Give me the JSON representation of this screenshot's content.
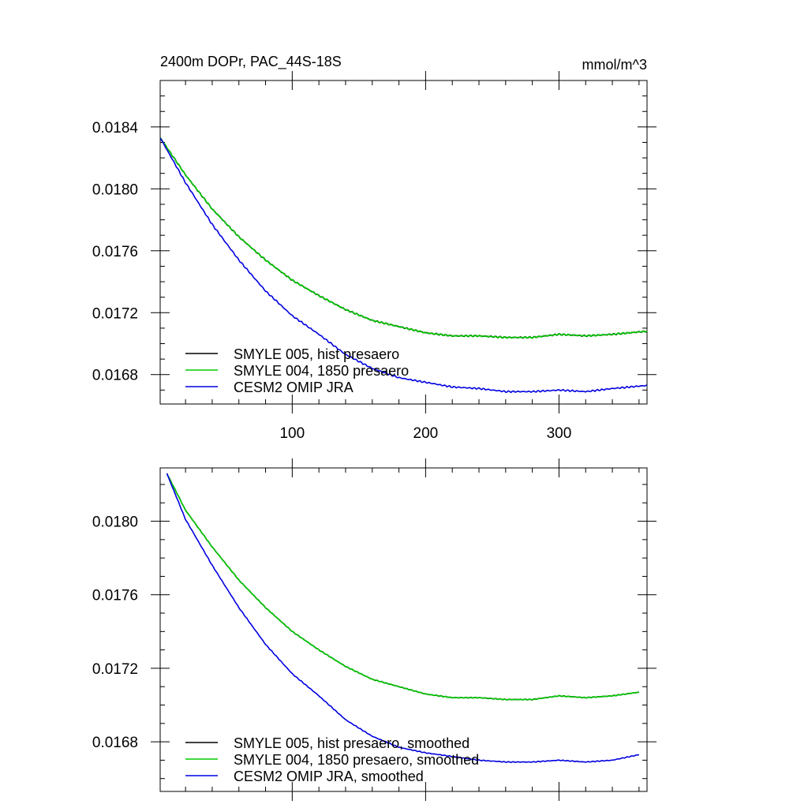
{
  "chart_data": [
    {
      "type": "line",
      "title": "2400m DOPr, PAC_44S-18S",
      "units": "mmol/m^3",
      "xlim": [
        1,
        366
      ],
      "ylim": [
        0.01661,
        0.0187
      ],
      "x_ticks": [
        100,
        200,
        300
      ],
      "x_tick_labels": [
        "100",
        "200",
        "300"
      ],
      "y_ticks": [
        0.0168,
        0.0172,
        0.0176,
        0.018,
        0.0184
      ],
      "y_tick_labels": [
        "0.0168",
        "0.0172",
        "0.0176",
        "0.0180",
        "0.0184"
      ],
      "legend": "bottom-left",
      "series": [
        {
          "name": "SMYLE 005, hist presaero",
          "color": "#000000",
          "x": [
            1,
            20,
            40,
            60,
            80,
            100,
            120,
            140,
            160,
            180,
            200,
            220,
            240,
            260,
            280,
            300,
            320,
            340,
            366
          ],
          "values": [
            0.01833,
            0.01809,
            0.01787,
            0.01769,
            0.01754,
            0.01741,
            0.01731,
            0.01722,
            0.01715,
            0.01711,
            0.01707,
            0.01705,
            0.01705,
            0.01704,
            0.01704,
            0.01706,
            0.01705,
            0.01706,
            0.01708
          ]
        },
        {
          "name": "SMYLE 004, 1850 presaero",
          "color": "#00cc00",
          "x": [
            1,
            20,
            40,
            60,
            80,
            100,
            120,
            140,
            160,
            180,
            200,
            220,
            240,
            260,
            280,
            300,
            320,
            340,
            366
          ],
          "values": [
            0.01833,
            0.01809,
            0.01787,
            0.01769,
            0.01754,
            0.01741,
            0.01731,
            0.01722,
            0.01715,
            0.01711,
            0.01707,
            0.01705,
            0.01705,
            0.01704,
            0.01704,
            0.01706,
            0.01705,
            0.01706,
            0.01708
          ]
        },
        {
          "name": "CESM2 OMIP JRA",
          "color": "#0000e0",
          "x": [
            1,
            20,
            40,
            60,
            80,
            100,
            120,
            140,
            160,
            180,
            200,
            220,
            240,
            260,
            280,
            300,
            320,
            340,
            366
          ],
          "values": [
            0.01833,
            0.01804,
            0.01777,
            0.01754,
            0.01734,
            0.01718,
            0.01706,
            0.01693,
            0.01684,
            0.01678,
            0.01675,
            0.01672,
            0.01671,
            0.01669,
            0.01669,
            0.0167,
            0.01669,
            0.01671,
            0.01673
          ]
        }
      ]
    },
    {
      "type": "line",
      "title": "",
      "xlim": [
        1,
        366
      ],
      "ylim": [
        0.01653,
        0.01829
      ],
      "x_ticks": [
        100,
        200,
        300
      ],
      "x_tick_labels": [],
      "y_ticks": [
        0.0168,
        0.0172,
        0.0176,
        0.018
      ],
      "y_tick_labels": [
        "0.0168",
        "0.0172",
        "0.0176",
        "0.0180"
      ],
      "legend": "bottom-left",
      "series": [
        {
          "name": "SMYLE 005, hist presaero, smoothed",
          "color": "#000000",
          "x": [
            6,
            20,
            40,
            60,
            80,
            100,
            120,
            140,
            160,
            180,
            200,
            220,
            240,
            260,
            280,
            300,
            320,
            340,
            360
          ],
          "values": [
            0.01826,
            0.01806,
            0.01786,
            0.01768,
            0.01753,
            0.0174,
            0.0173,
            0.01721,
            0.01714,
            0.0171,
            0.01706,
            0.01704,
            0.01704,
            0.01703,
            0.01703,
            0.01705,
            0.01704,
            0.01705,
            0.01707
          ]
        },
        {
          "name": "SMYLE 004, 1850 presaero, smoothed",
          "color": "#00cc00",
          "x": [
            6,
            20,
            40,
            60,
            80,
            100,
            120,
            140,
            160,
            180,
            200,
            220,
            240,
            260,
            280,
            300,
            320,
            340,
            360
          ],
          "values": [
            0.01826,
            0.01806,
            0.01786,
            0.01768,
            0.01753,
            0.0174,
            0.0173,
            0.01721,
            0.01714,
            0.0171,
            0.01706,
            0.01704,
            0.01704,
            0.01703,
            0.01703,
            0.01705,
            0.01704,
            0.01705,
            0.01707
          ]
        },
        {
          "name": "CESM2 OMIP JRA, smoothed",
          "color": "#0000e0",
          "x": [
            6,
            20,
            40,
            60,
            80,
            100,
            120,
            140,
            160,
            180,
            200,
            220,
            240,
            260,
            280,
            300,
            320,
            340,
            360
          ],
          "values": [
            0.01826,
            0.01801,
            0.01776,
            0.01753,
            0.01733,
            0.01717,
            0.01705,
            0.01692,
            0.01683,
            0.01677,
            0.01674,
            0.01672,
            0.0167,
            0.01669,
            0.01669,
            0.0167,
            0.01669,
            0.0167,
            0.01673
          ]
        }
      ]
    }
  ]
}
